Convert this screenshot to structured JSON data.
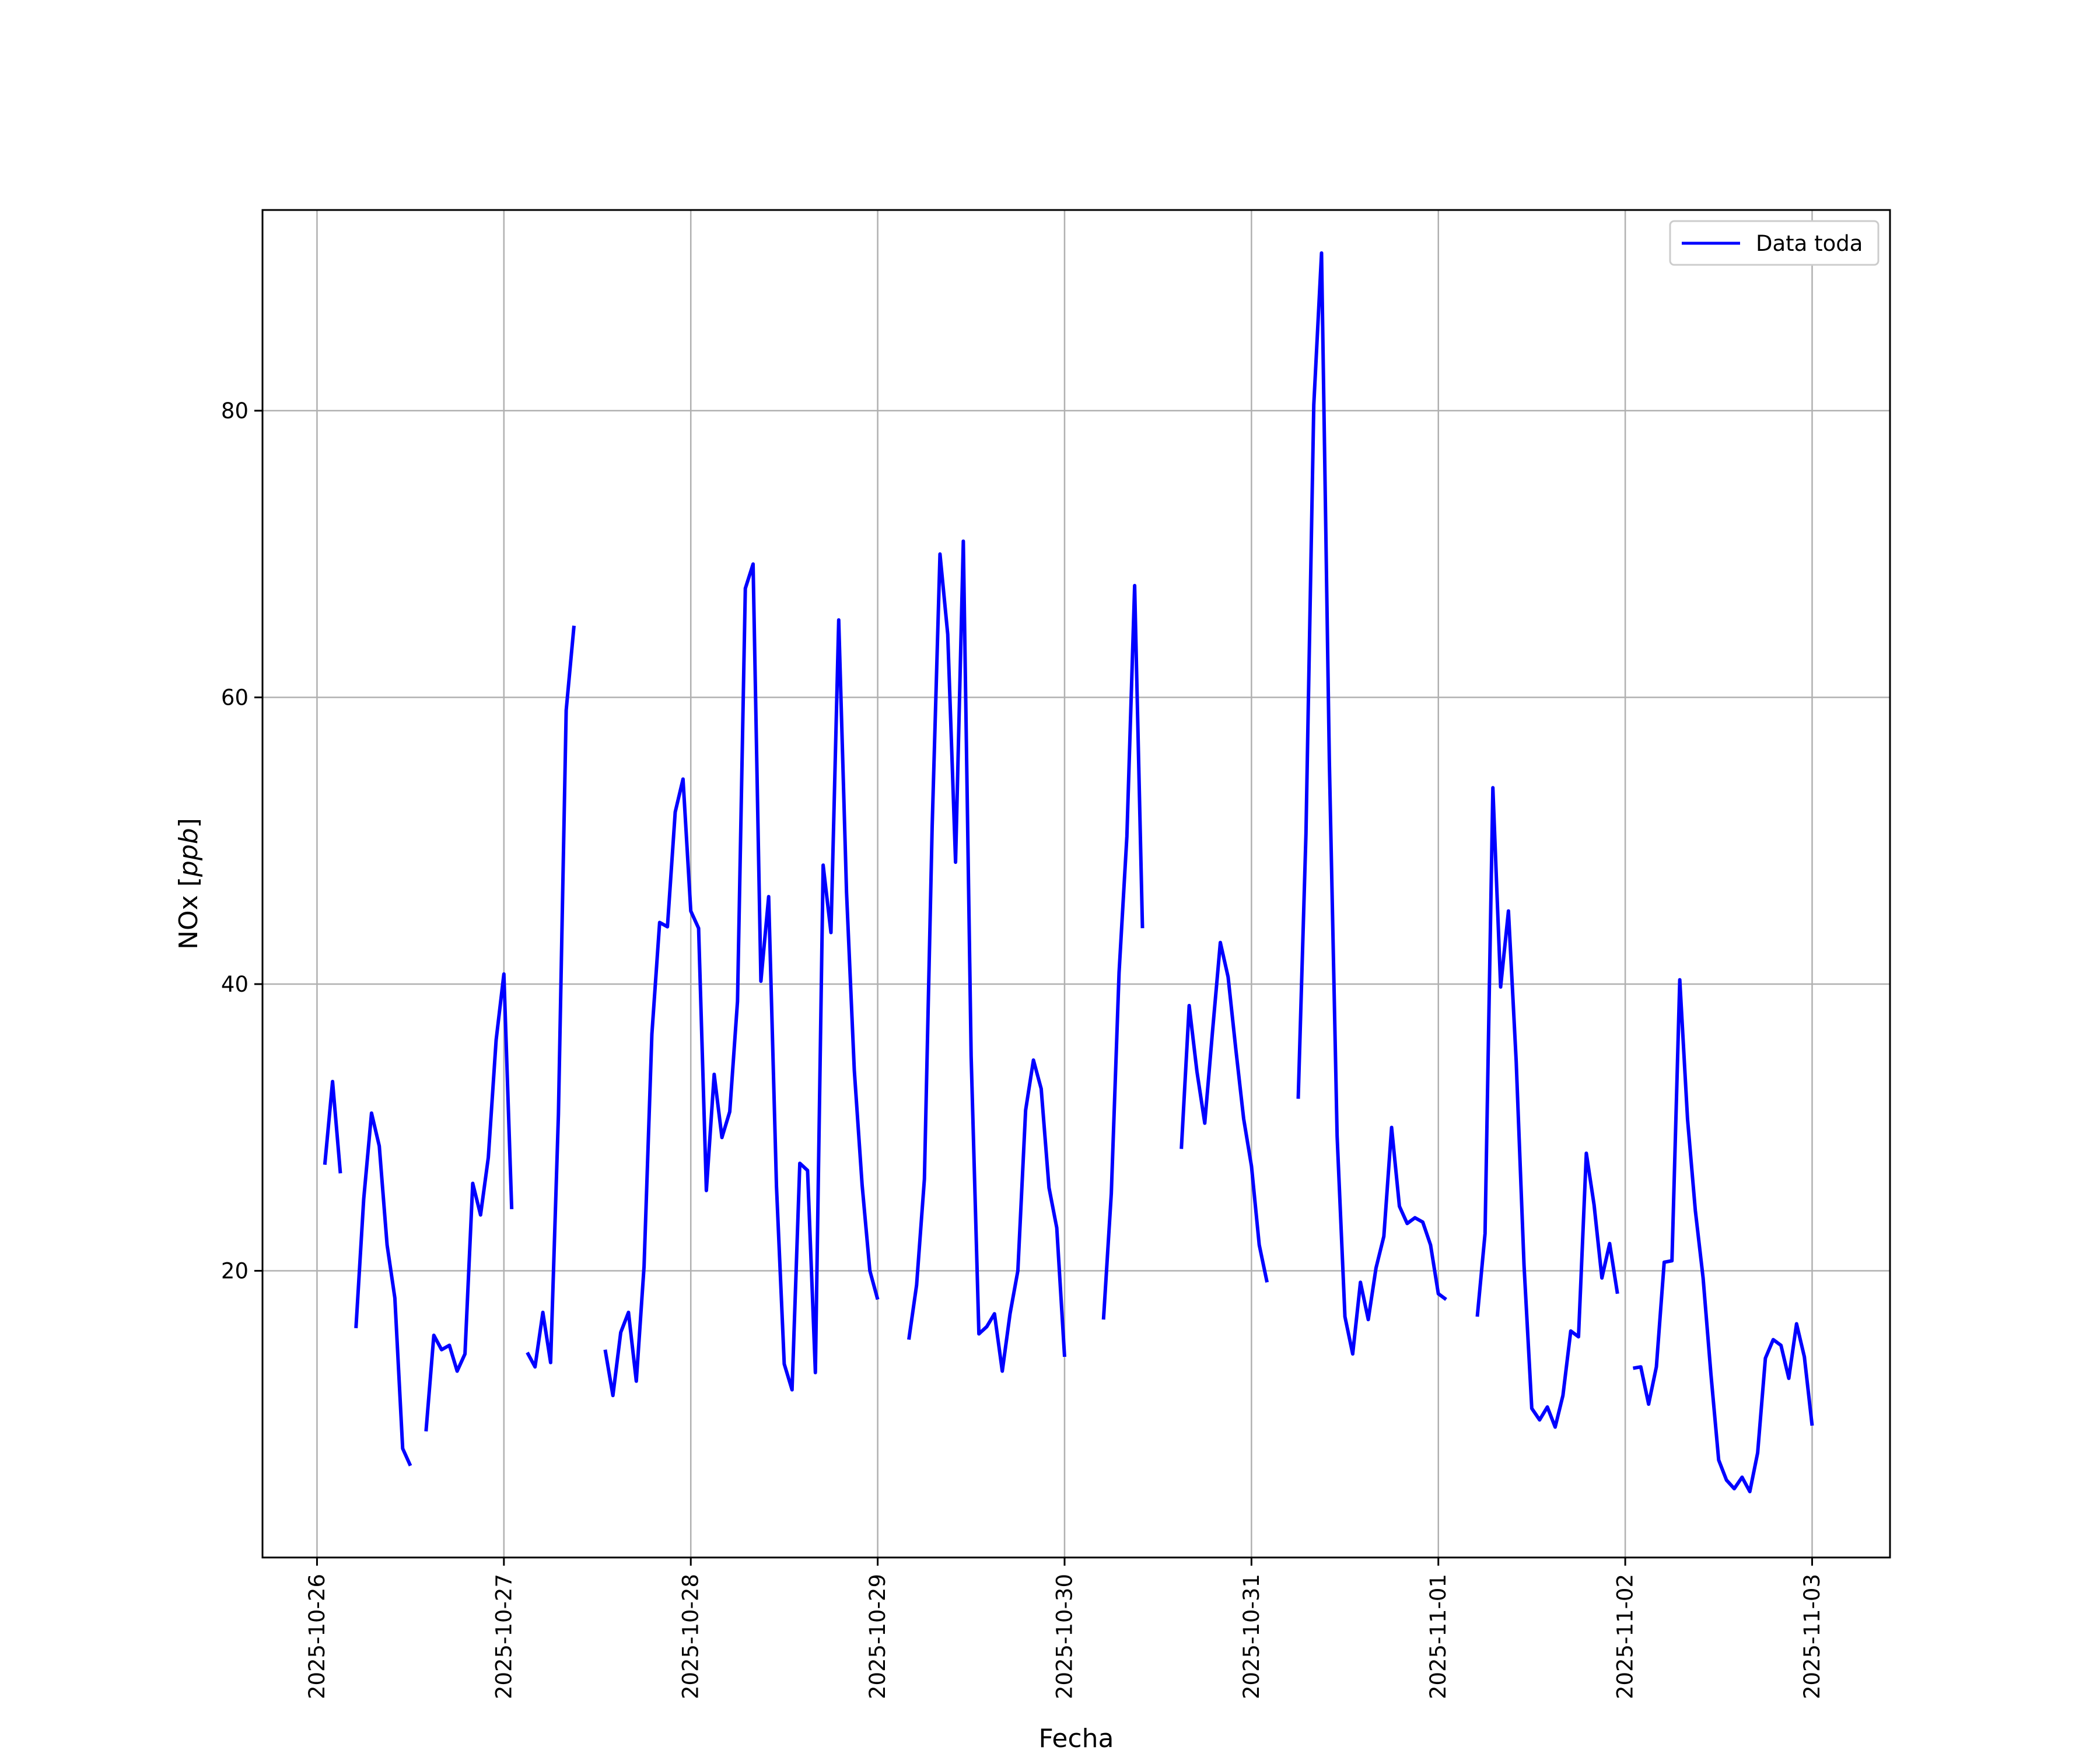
{
  "chart_data": {
    "type": "line",
    "title": "",
    "xlabel": "Fecha",
    "ylabel_main": "NOx [",
    "ylabel_unit": "ppb",
    "ylabel_close": "]",
    "xlim": [
      "2025-10-25 17:00",
      "2025-11-03 10:00"
    ],
    "ylim": [
      0,
      94
    ],
    "grid": true,
    "legend_position": "top-right",
    "x_ticks": [
      "2025-10-26",
      "2025-10-27",
      "2025-10-28",
      "2025-10-29",
      "2025-10-30",
      "2025-10-31",
      "2025-11-01",
      "2025-11-02",
      "2025-11-03"
    ],
    "y_ticks": [
      "20",
      "40",
      "60",
      "80"
    ],
    "series": [
      {
        "name": "Data toda",
        "color": "#0000ff",
        "segments": [
          [
            [
              "2025-10-26 01:00",
              27.4
            ],
            [
              "2025-10-26 02:00",
              33.2
            ],
            [
              "2025-10-26 03:00",
              26.8
            ]
          ],
          [
            [
              "2025-10-26 05:00",
              16.0
            ],
            [
              "2025-10-26 06:00",
              25.0
            ],
            [
              "2025-10-26 07:00",
              31.0
            ],
            [
              "2025-10-26 08:00",
              28.7
            ],
            [
              "2025-10-26 09:00",
              21.8
            ],
            [
              "2025-10-26 10:00",
              18.1
            ],
            [
              "2025-10-26 11:00",
              7.6
            ],
            [
              "2025-10-26 12:00",
              6.4
            ]
          ],
          [
            [
              "2025-10-26 14:00",
              8.8
            ],
            [
              "2025-10-26 15:00",
              15.5
            ],
            [
              "2025-10-26 16:00",
              14.5
            ],
            [
              "2025-10-26 17:00",
              14.8
            ],
            [
              "2025-10-26 18:00",
              13.0
            ],
            [
              "2025-10-26 19:00",
              14.2
            ],
            [
              "2025-10-26 20:00",
              26.1
            ],
            [
              "2025-10-26 21:00",
              23.9
            ],
            [
              "2025-10-26 22:00",
              27.9
            ],
            [
              "2025-10-26 23:00",
              36.1
            ],
            [
              "2025-10-27 00:00",
              40.7
            ],
            [
              "2025-10-27 01:00",
              24.3
            ]
          ],
          [
            [
              "2025-10-27 03:00",
              14.3
            ],
            [
              "2025-10-27 04:00",
              13.3
            ],
            [
              "2025-10-27 05:00",
              17.1
            ],
            [
              "2025-10-27 06:00",
              13.6
            ],
            [
              "2025-10-27 07:00",
              30.9
            ],
            [
              "2025-10-27 08:00",
              59.1
            ],
            [
              "2025-10-27 09:00",
              65.0
            ]
          ],
          [
            [
              "2025-10-27 13:00",
              14.5
            ],
            [
              "2025-10-27 14:00",
              11.3
            ],
            [
              "2025-10-27 15:00",
              15.7
            ],
            [
              "2025-10-27 16:00",
              17.1
            ],
            [
              "2025-10-27 17:00",
              12.3
            ],
            [
              "2025-10-27 18:00",
              20.3
            ],
            [
              "2025-10-27 19:00",
              36.5
            ],
            [
              "2025-10-27 20:00",
              44.3
            ],
            [
              "2025-10-27 21:00",
              44.0
            ],
            [
              "2025-10-27 22:00",
              52.0
            ],
            [
              "2025-10-27 23:00",
              54.3
            ],
            [
              "2025-10-28 00:00",
              45.1
            ],
            [
              "2025-10-28 01:00",
              43.9
            ],
            [
              "2025-10-28 02:00",
              25.6
            ],
            [
              "2025-10-28 03:00",
              33.7
            ],
            [
              "2025-10-28 04:00",
              29.3
            ],
            [
              "2025-10-28 05:00",
              31.1
            ],
            [
              "2025-10-28 06:00",
              38.8
            ],
            [
              "2025-10-28 07:00",
              67.6
            ],
            [
              "2025-10-28 08:00",
              69.3
            ],
            [
              "2025-10-28 09:00",
              40.2
            ],
            [
              "2025-10-28 10:00",
              46.1
            ],
            [
              "2025-10-28 11:00",
              25.9
            ],
            [
              "2025-10-28 12:00",
              13.5
            ],
            [
              "2025-10-28 13:00",
              11.7
            ],
            [
              "2025-10-28 14:00",
              27.5
            ],
            [
              "2025-10-28 15:00",
              27.0
            ],
            [
              "2025-10-28 16:00",
              12.9
            ],
            [
              "2025-10-28 17:00",
              48.3
            ],
            [
              "2025-10-28 18:00",
              43.6
            ],
            [
              "2025-10-28 19:00",
              65.4
            ],
            [
              "2025-10-28 20:00",
              46.4
            ],
            [
              "2025-10-28 21:00",
              34.0
            ],
            [
              "2025-10-28 22:00",
              26.0
            ],
            [
              "2025-10-28 23:00",
              20.0
            ],
            [
              "2025-10-29 00:00",
              18.0
            ]
          ],
          [
            [
              "2025-10-29 04:00",
              15.2
            ],
            [
              "2025-10-29 05:00",
              19.0
            ],
            [
              "2025-10-29 06:00",
              26.4
            ],
            [
              "2025-10-29 07:00",
              51.0
            ],
            [
              "2025-10-29 08:00",
              70.0
            ],
            [
              "2025-10-29 09:00",
              64.4
            ],
            [
              "2025-10-29 10:00",
              48.5
            ],
            [
              "2025-10-29 11:00",
              70.9
            ],
            [
              "2025-10-29 12:00",
              35.0
            ],
            [
              "2025-10-29 13:00",
              15.6
            ],
            [
              "2025-10-29 14:00",
              16.1
            ],
            [
              "2025-10-29 15:00",
              17.0
            ],
            [
              "2025-10-29 16:00",
              13.0
            ],
            [
              "2025-10-29 17:00",
              17.0
            ],
            [
              "2025-10-29 18:00",
              20.0
            ],
            [
              "2025-10-29 19:00",
              31.2
            ],
            [
              "2025-10-29 20:00",
              34.7
            ],
            [
              "2025-10-29 21:00",
              32.7
            ],
            [
              "2025-10-29 22:00",
              25.8
            ],
            [
              "2025-10-29 23:00",
              23.0
            ],
            [
              "2025-10-30 00:00",
              14.0
            ]
          ],
          [
            [
              "2025-10-30 05:00",
              16.6
            ],
            [
              "2025-10-30 06:00",
              25.4
            ],
            [
              "2025-10-30 07:00",
              40.8
            ],
            [
              "2025-10-30 08:00",
              50.3
            ],
            [
              "2025-10-30 09:00",
              67.8
            ],
            [
              "2025-10-30 10:00",
              43.9
            ]
          ],
          [
            [
              "2025-10-30 15:00",
              28.5
            ],
            [
              "2025-10-30 16:00",
              38.5
            ],
            [
              "2025-10-30 17:00",
              33.9
            ],
            [
              "2025-10-30 18:00",
              30.3
            ],
            [
              "2025-10-30 19:00",
              36.7
            ],
            [
              "2025-10-30 20:00",
              42.9
            ],
            [
              "2025-10-30 21:00",
              40.5
            ],
            [
              "2025-10-30 22:00",
              35.4
            ],
            [
              "2025-10-30 23:00",
              30.6
            ],
            [
              "2025-10-31 00:00",
              27.3
            ],
            [
              "2025-10-31 01:00",
              21.8
            ],
            [
              "2025-10-31 02:00",
              19.2
            ]
          ],
          [
            [
              "2025-10-31 06:00",
              32.0
            ],
            [
              "2025-10-31 07:00",
              50.5
            ],
            [
              "2025-10-31 08:00",
              80.4
            ],
            [
              "2025-10-31 09:00",
              91.0
            ],
            [
              "2025-10-31 10:00",
              55.5
            ],
            [
              "2025-10-31 11:00",
              29.4
            ],
            [
              "2025-10-31 12:00",
              16.8
            ],
            [
              "2025-10-31 13:00",
              14.2
            ],
            [
              "2025-10-31 14:00",
              19.2
            ],
            [
              "2025-10-31 15:00",
              16.6
            ],
            [
              "2025-10-31 16:00",
              20.2
            ],
            [
              "2025-10-31 17:00",
              22.4
            ],
            [
              "2025-10-31 18:00",
              30.0
            ],
            [
              "2025-10-31 19:00",
              24.5
            ],
            [
              "2025-10-31 20:00",
              23.3
            ],
            [
              "2025-10-31 21:00",
              23.7
            ],
            [
              "2025-10-31 22:00",
              23.4
            ],
            [
              "2025-10-31 23:00",
              21.8
            ],
            [
              "2025-11-01 00:00",
              18.4
            ],
            [
              "2025-11-01 01:00",
              18.0
            ]
          ],
          [
            [
              "2025-11-01 05:00",
              16.8
            ],
            [
              "2025-11-01 06:00",
              22.6
            ],
            [
              "2025-11-01 07:00",
              53.7
            ],
            [
              "2025-11-01 08:00",
              39.8
            ],
            [
              "2025-11-01 09:00",
              45.1
            ],
            [
              "2025-11-01 10:00",
              34.6
            ],
            [
              "2025-11-01 11:00",
              20.4
            ],
            [
              "2025-11-01 12:00",
              10.4
            ],
            [
              "2025-11-01 13:00",
              9.6
            ],
            [
              "2025-11-01 14:00",
              10.5
            ],
            [
              "2025-11-01 15:00",
              9.1
            ],
            [
              "2025-11-01 16:00",
              11.3
            ],
            [
              "2025-11-01 17:00",
              15.8
            ],
            [
              "2025-11-01 18:00",
              15.4
            ],
            [
              "2025-11-01 19:00",
              28.2
            ],
            [
              "2025-11-01 20:00",
              24.6
            ],
            [
              "2025-11-01 21:00",
              19.5
            ],
            [
              "2025-11-01 22:00",
              21.9
            ],
            [
              "2025-11-01 23:00",
              18.4
            ]
          ],
          [
            [
              "2025-11-02 01:00",
              13.2
            ],
            [
              "2025-11-02 02:00",
              13.3
            ],
            [
              "2025-11-02 03:00",
              10.7
            ],
            [
              "2025-11-02 04:00",
              13.3
            ],
            [
              "2025-11-02 05:00",
              20.6
            ],
            [
              "2025-11-02 06:00",
              20.7
            ],
            [
              "2025-11-02 07:00",
              40.3
            ],
            [
              "2025-11-02 08:00",
              30.6
            ],
            [
              "2025-11-02 09:00",
              24.2
            ],
            [
              "2025-11-02 10:00",
              19.5
            ],
            [
              "2025-11-02 11:00",
              12.8
            ],
            [
              "2025-11-02 12:00",
              6.8
            ],
            [
              "2025-11-02 13:00",
              5.4
            ],
            [
              "2025-11-02 14:00",
              4.8
            ],
            [
              "2025-11-02 15:00",
              5.6
            ],
            [
              "2025-11-02 16:00",
              4.6
            ],
            [
              "2025-11-02 17:00",
              7.3
            ],
            [
              "2025-11-02 18:00",
              13.9
            ],
            [
              "2025-11-02 19:00",
              15.2
            ],
            [
              "2025-11-02 20:00",
              14.8
            ],
            [
              "2025-11-02 21:00",
              12.5
            ],
            [
              "2025-11-02 22:00",
              16.3
            ],
            [
              "2025-11-02 23:00",
              14.0
            ],
            [
              "2025-11-03 00:00",
              9.2
            ]
          ]
        ]
      }
    ]
  }
}
